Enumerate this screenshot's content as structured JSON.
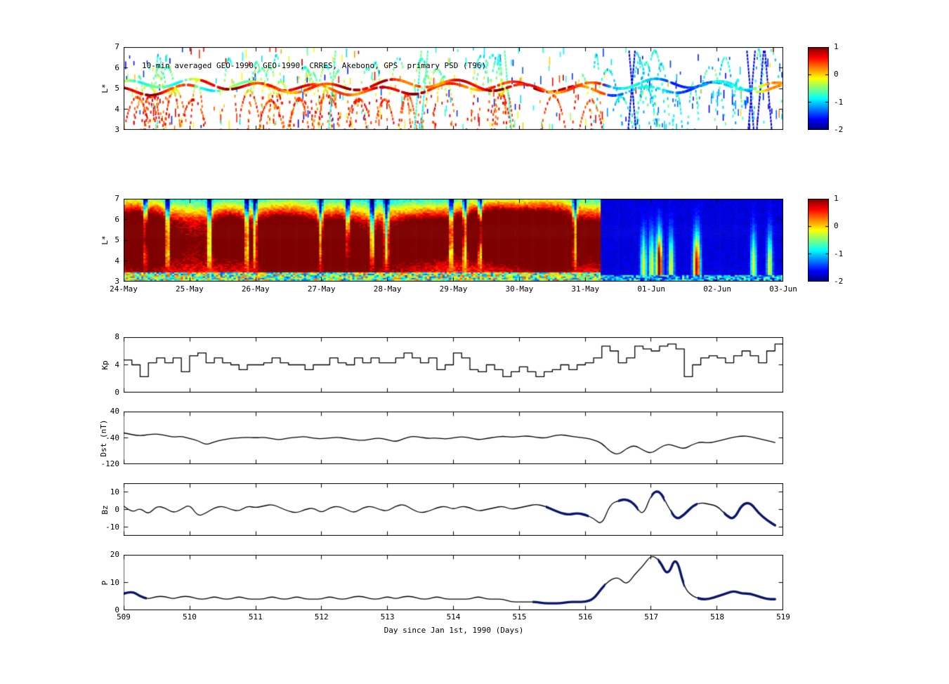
{
  "colors": {
    "line": "#000000",
    "highlight": "#0a1568",
    "background": "#ffffff",
    "frame": "#000000"
  },
  "xaxis": {
    "label": "Day since Jan 1st, 1990 (Days)",
    "ticks": [
      509,
      510,
      511,
      512,
      513,
      514,
      515,
      516,
      517,
      518,
      519
    ],
    "lim": [
      509,
      519
    ]
  },
  "colorbar": {
    "lim": [
      -2,
      1
    ],
    "ticks": [
      1,
      0,
      -1,
      -2
    ],
    "colormap": "jet"
  },
  "chart_data": [
    {
      "type": "scatter",
      "name": "psd-observations",
      "title": "10-min averaged GEO-1990, GEO-1990, CRRES, Akebono, GPS  primary PSD (T96)",
      "ylabel": "L*",
      "ylim": [
        3,
        7
      ],
      "yticks": [
        3,
        4,
        5,
        6,
        7
      ],
      "xlim": [
        509,
        519
      ],
      "color_lim": [
        -2,
        1
      ],
      "colormap": "jet",
      "satellites": [
        "GEO-1990",
        "GEO-1990",
        "CRRES",
        "Akebono",
        "GPS"
      ],
      "note": "log10 PSD along satellite tracks; dense red/orange band near L*~5 before day ~516.3 storm onset, blue/cyan band and arcs afterwards, with many colored short vertical passes spanning L*=3-7",
      "generator": {
        "seed": 42,
        "n_arcs": 72,
        "n_dashes": 330,
        "storm_day": 516.3,
        "geo_l": 5.0,
        "geo_dt": 0.007
      }
    },
    {
      "type": "heatmap",
      "name": "psd-model-reanalysis",
      "ylabel": "L*",
      "ylim": [
        3,
        7
      ],
      "yticks": [
        3,
        4,
        5,
        6,
        7
      ],
      "xlim": [
        509,
        519
      ],
      "xticklabels": [
        "24-May",
        "25-May",
        "26-May",
        "27-May",
        "28-May",
        "29-May",
        "30-May",
        "31-May",
        "01-Jun",
        "02-Jun",
        "03-Jun"
      ],
      "color_lim": [
        -2,
        1
      ],
      "colormap": "jet",
      "note": "reanalyzed log10 PSD; hot red structures at L*=4-6 from 24-May through 31-May interrupted by cyan vertical dropouts, deep blue everywhere after storm onset (01-Jun to 03-Jun) with a few cyan plumes; speckled low-L* band at bottom",
      "generator": {
        "seed": 7,
        "nt": 300,
        "nl": 60,
        "storm_day": 516.25,
        "streaks_pre": 13,
        "plumes_post": 9
      }
    },
    {
      "type": "line",
      "name": "Kp",
      "ylabel": "Kp",
      "ylim": [
        0,
        8
      ],
      "yticks": [
        0,
        4,
        8
      ],
      "step": true,
      "x_start": 509,
      "dt_days": 0.125,
      "values": [
        4.7,
        4,
        2.3,
        4.3,
        5,
        4.3,
        5,
        3,
        5.3,
        5.7,
        4.3,
        5,
        4.3,
        4,
        3.3,
        4,
        4,
        4.3,
        5,
        4.3,
        4,
        4,
        3.3,
        4,
        4,
        5,
        4.3,
        4,
        5,
        4.3,
        5,
        4.3,
        4.3,
        5,
        5.7,
        5,
        4.3,
        5,
        3.3,
        4,
        5.7,
        5,
        3.3,
        3,
        4,
        3.3,
        2.3,
        3,
        3.7,
        3,
        2.3,
        3,
        3.3,
        4,
        3.3,
        4,
        4.3,
        5,
        6.7,
        6,
        4.3,
        5,
        6.7,
        6.3,
        6,
        6.7,
        7,
        6.3,
        2.3,
        4,
        5,
        5.3,
        5,
        4.3,
        5.3,
        6,
        5.3,
        4.3,
        6,
        7
      ]
    },
    {
      "type": "line",
      "name": "Dst",
      "ylabel": "Dst (nT)",
      "ylim": [
        -120,
        40
      ],
      "yticks": [
        -120,
        -40,
        40
      ],
      "step": false,
      "x_start": 509,
      "dt_days": 0.125,
      "values": [
        -25,
        -30,
        -34,
        -30,
        -28,
        -32,
        -38,
        -35,
        -42,
        -48,
        -62,
        -52,
        -46,
        -42,
        -40,
        -38,
        -40,
        -38,
        -43,
        -46,
        -40,
        -38,
        -36,
        -41,
        -43,
        -40,
        -38,
        -42,
        -46,
        -48,
        -44,
        -40,
        -46,
        -52,
        -42,
        -35,
        -38,
        -42,
        -40,
        -44,
        -40,
        -36,
        -40,
        -46,
        -42,
        -38,
        -35,
        -38,
        -36,
        -34,
        -38,
        -41,
        -35,
        -30,
        -34,
        -38,
        -40,
        -46,
        -56,
        -82,
        -92,
        -72,
        -62,
        -78,
        -88,
        -70,
        -58,
        -66,
        -74,
        -60,
        -52,
        -56,
        -50,
        -44,
        -38,
        -34,
        -36,
        -42,
        -48,
        -54
      ]
    },
    {
      "type": "line",
      "name": "Bz",
      "ylabel": "Bz",
      "ylim": [
        -15,
        15
      ],
      "yticks": [
        -10,
        0,
        10
      ],
      "step": false,
      "x_start": 509,
      "dt_days": 0.125,
      "highlight_intervals": [
        [
          515.4,
          516.05
        ],
        [
          516.5,
          516.8
        ],
        [
          517.0,
          517.2
        ],
        [
          517.3,
          517.7
        ],
        [
          518.1,
          519.0
        ]
      ],
      "values": [
        2,
        -2,
        1,
        -3,
        2,
        1,
        -2,
        0,
        3,
        -4,
        -2,
        1,
        2,
        0,
        -1,
        2,
        1,
        2,
        3,
        1,
        -1,
        -2,
        0,
        1,
        -2,
        1,
        2,
        0,
        -2,
        1,
        2,
        0,
        -1,
        2,
        3,
        0,
        -2,
        -1,
        1,
        2,
        0,
        2,
        1,
        -1,
        0,
        1,
        2,
        0,
        1,
        2,
        3,
        2,
        0,
        -2,
        -3,
        -2,
        -3,
        -5,
        -9,
        3,
        5,
        6,
        3,
        -4,
        9,
        11,
        2,
        -6,
        -3,
        2,
        4,
        3,
        2,
        -3,
        -6,
        3,
        4,
        -2,
        -6,
        -9
      ]
    },
    {
      "type": "line",
      "name": "P",
      "ylabel": "P",
      "ylim": [
        0,
        20
      ],
      "yticks": [
        0,
        10,
        20
      ],
      "step": false,
      "x_start": 509,
      "dt_days": 0.125,
      "highlight_intervals": [
        [
          509.0,
          509.35
        ],
        [
          515.2,
          516.3
        ],
        [
          517.1,
          517.5
        ],
        [
          517.7,
          519.0
        ]
      ],
      "values": [
        6,
        7,
        5,
        4,
        5,
        5,
        4,
        5,
        5,
        4,
        4,
        5,
        4,
        4,
        5,
        4,
        4,
        4,
        5,
        4,
        4,
        5,
        4,
        4,
        4,
        5,
        4,
        4,
        5,
        5,
        4,
        4,
        5,
        4,
        5,
        5,
        4,
        4,
        5,
        4,
        4,
        4,
        4,
        5,
        4,
        4,
        4,
        3,
        3,
        3,
        3,
        2.5,
        2.5,
        2.5,
        3,
        3,
        3,
        4,
        8,
        11,
        12,
        9,
        13,
        16,
        20,
        18,
        12,
        20,
        8,
        5,
        4,
        4,
        5,
        6,
        7,
        6,
        6,
        5,
        4,
        4
      ]
    }
  ]
}
